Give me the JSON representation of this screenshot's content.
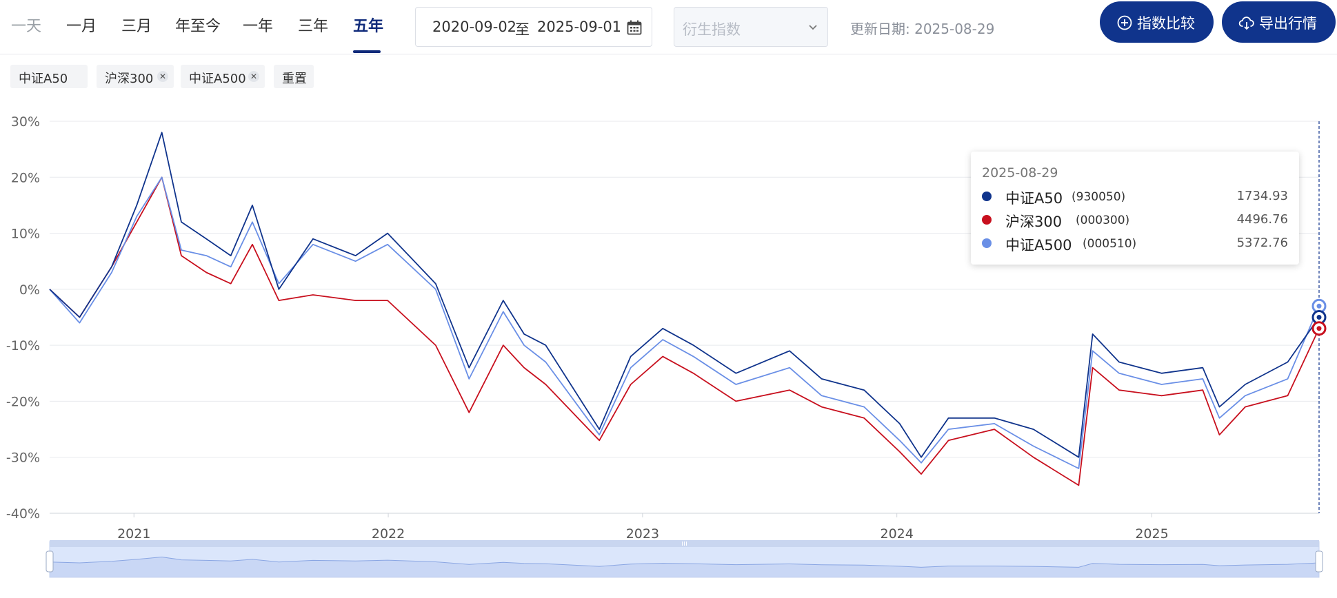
{
  "range_tabs": [
    "一天",
    "一月",
    "三月",
    "年至今",
    "一年",
    "三年",
    "五年"
  ],
  "active_range": "五年",
  "date_range": {
    "start": "2020-09-02",
    "separator": "至",
    "end": "2025-09-01"
  },
  "derive_select": {
    "placeholder": "衍生指数"
  },
  "update_date": "更新日期: 2025-08-29",
  "buttons": {
    "compare": "指数比较",
    "export": "导出行情"
  },
  "chips": {
    "a50": "中证A50",
    "hs300": "沪深300",
    "a500": "中证A500",
    "reset": "重置"
  },
  "colors": {
    "a50": "#10348c",
    "hs300": "#c8101e",
    "a500": "#6a8fe6",
    "accent": "#10348c"
  },
  "tooltip": {
    "date": "2025-08-29",
    "rows": [
      {
        "name": "中证A50",
        "code": "(930050)",
        "value": "1734.93",
        "color": "#10348c"
      },
      {
        "name": "沪深300",
        "code": "(000300)",
        "value": "4496.76",
        "color": "#c8101e"
      },
      {
        "name": "中证A500",
        "code": "(000510)",
        "value": "5372.76",
        "color": "#6a8fe6"
      }
    ]
  },
  "chart_data": {
    "type": "line",
    "title": "",
    "xlabel": "",
    "ylabel": "",
    "ylim": [
      -40,
      30
    ],
    "yticks": [
      "30%",
      "20%",
      "10%",
      "0%",
      "-10%",
      "-20%",
      "-30%",
      "-40%"
    ],
    "xticks": [
      "2021",
      "2022",
      "2023",
      "2024",
      "2025"
    ],
    "x": [
      "2020-09-02",
      "2020-10-15",
      "2020-11-30",
      "2021-01-05",
      "2021-02-10",
      "2021-03-10",
      "2021-04-15",
      "2021-05-20",
      "2021-06-20",
      "2021-07-28",
      "2021-09-15",
      "2021-11-15",
      "2021-12-31",
      "2022-03-10",
      "2022-04-27",
      "2022-06-15",
      "2022-07-15",
      "2022-08-15",
      "2022-10-31",
      "2022-12-15",
      "2023-01-30",
      "2023-03-15",
      "2023-05-15",
      "2023-07-31",
      "2023-09-15",
      "2023-11-15",
      "2024-01-05",
      "2024-02-05",
      "2024-03-15",
      "2024-05-20",
      "2024-07-15",
      "2024-09-18",
      "2024-10-08",
      "2024-11-15",
      "2025-01-15",
      "2025-03-15",
      "2025-04-08",
      "2025-05-15",
      "2025-07-15",
      "2025-08-29"
    ],
    "series": [
      {
        "name": "中证A50",
        "values": [
          0,
          -5,
          4,
          15,
          28,
          12,
          9,
          6,
          15,
          0,
          9,
          6,
          10,
          1,
          -14,
          -2,
          -8,
          -10,
          -25,
          -12,
          -7,
          -10,
          -15,
          -11,
          -16,
          -18,
          -24,
          -30,
          -23,
          -23,
          -25,
          -30,
          -8,
          -13,
          -15,
          -14,
          -21,
          -17,
          -13,
          -5
        ]
      },
      {
        "name": "沪深300",
        "values": [
          0,
          -5,
          4,
          12,
          20,
          6,
          3,
          1,
          8,
          -2,
          -1,
          -2,
          -2,
          -10,
          -22,
          -10,
          -14,
          -17,
          -27,
          -17,
          -12,
          -15,
          -20,
          -18,
          -21,
          -23,
          -29,
          -33,
          -27,
          -25,
          -30,
          -35,
          -14,
          -18,
          -19,
          -18,
          -26,
          -21,
          -19,
          -7
        ]
      },
      {
        "name": "中证A500",
        "values": [
          0,
          -6,
          3,
          13,
          20,
          7,
          6,
          4,
          12,
          1,
          8,
          5,
          8,
          0,
          -16,
          -4,
          -10,
          -13,
          -26,
          -14,
          -9,
          -12,
          -17,
          -14,
          -19,
          -21,
          -27,
          -31,
          -25,
          -24,
          -28,
          -32,
          -11,
          -15,
          -17,
          -16,
          -23,
          -19,
          -16,
          -3
        ]
      }
    ],
    "grid": true,
    "legend": "none"
  }
}
